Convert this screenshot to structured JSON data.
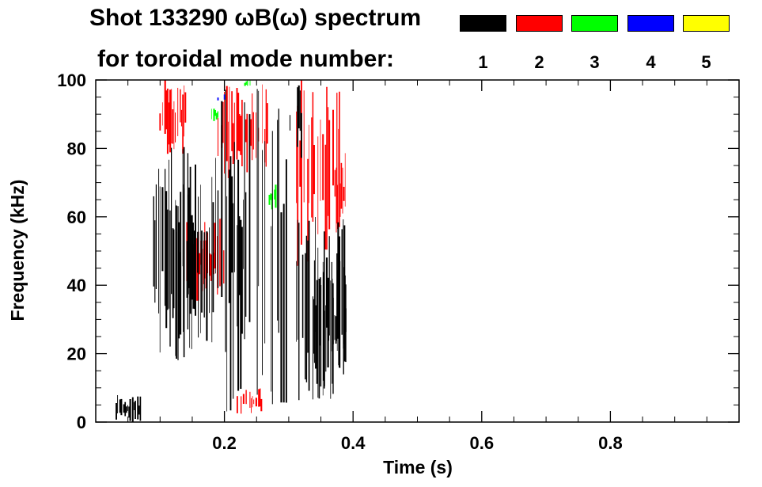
{
  "header": {
    "title_line1": "Shot 133290 ωB(ω) spectrum",
    "title_line2": "for toroidal mode number:"
  },
  "legend": [
    {
      "label": "1",
      "color": "#000000"
    },
    {
      "label": "2",
      "color": "#ff0000"
    },
    {
      "label": "3",
      "color": "#00ff00"
    },
    {
      "label": "4",
      "color": "#0000ff"
    },
    {
      "label": "5",
      "color": "#ffff00"
    }
  ],
  "chart_data": {
    "type": "heatmap",
    "title": "Shot 133290 ωB(ω) spectrum for toroidal mode number:",
    "xlabel": "Time (s)",
    "ylabel": "Frequency (kHz)",
    "xlim": [
      0.0,
      1.0
    ],
    "ylim": [
      0,
      100
    ],
    "x_ticks": [
      0.2,
      0.4,
      0.6,
      0.8
    ],
    "x_tick_labels": [
      "0.2",
      "0.4",
      "0.6",
      "0.8"
    ],
    "y_ticks": [
      0,
      20,
      40,
      60,
      80,
      100
    ],
    "y_tick_labels": [
      "0",
      "20",
      "40",
      "60",
      "80",
      "100"
    ],
    "grid": false,
    "legend_position": "top-right",
    "series": [
      {
        "name": "1",
        "color": "#000000",
        "regions": [
          {
            "t": [
              0.03,
              0.07
            ],
            "f": [
              0,
              8
            ]
          },
          {
            "t": [
              0.09,
              0.19
            ],
            "f": [
              18,
              82
            ]
          },
          {
            "t": [
              0.12,
              0.16
            ],
            "f": [
              18,
              70
            ]
          },
          {
            "t": [
              0.19,
              0.3
            ],
            "f": [
              2,
              98
            ]
          },
          {
            "t": [
              0.3,
              0.32
            ],
            "f": [
              75,
              100
            ]
          },
          {
            "t": [
              0.31,
              0.39
            ],
            "f": [
              5,
              60
            ]
          },
          {
            "t": [
              0.34,
              0.39
            ],
            "f": [
              10,
              48
            ]
          }
        ]
      },
      {
        "name": "2",
        "color": "#ff0000",
        "regions": [
          {
            "t": [
              0.1,
              0.14
            ],
            "f": [
              78,
              100
            ]
          },
          {
            "t": [
              0.19,
              0.27
            ],
            "f": [
              68,
              100
            ]
          },
          {
            "t": [
              0.14,
              0.2
            ],
            "f": [
              35,
              60
            ]
          },
          {
            "t": [
              0.22,
              0.26
            ],
            "f": [
              2,
              10
            ]
          },
          {
            "t": [
              0.31,
              0.38
            ],
            "f": [
              45,
              100
            ]
          },
          {
            "t": [
              0.37,
              0.39
            ],
            "f": [
              55,
              80
            ]
          }
        ]
      },
      {
        "name": "3",
        "color": "#00ff00",
        "regions": [
          {
            "t": [
              0.27,
              0.28
            ],
            "f": [
              62,
              70
            ]
          },
          {
            "t": [
              0.23,
              0.24
            ],
            "f": [
              98,
              100
            ]
          },
          {
            "t": [
              0.18,
              0.19
            ],
            "f": [
              88,
              92
            ]
          }
        ]
      },
      {
        "name": "4",
        "color": "#0000ff",
        "regions": [
          {
            "t": [
              0.19,
              0.2
            ],
            "f": [
              93,
              96
            ]
          }
        ]
      },
      {
        "name": "5",
        "color": "#ffff00",
        "regions": []
      }
    ]
  }
}
